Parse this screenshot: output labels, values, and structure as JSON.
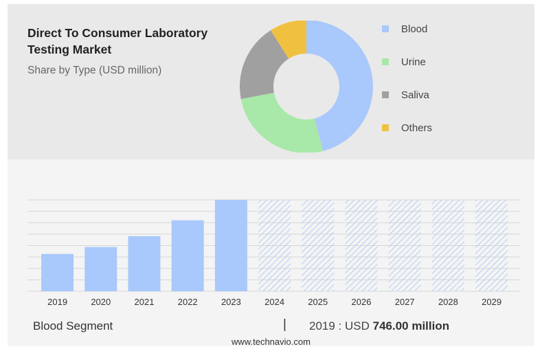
{
  "title": "Direct To Consumer Laboratory Testing Market",
  "subtitle": "Share by Type (USD million)",
  "legend": [
    {
      "label": "Blood",
      "color": "#a9c8fb"
    },
    {
      "label": "Urine",
      "color": "#a8e8a8"
    },
    {
      "label": "Saliva",
      "color": "#a0a0a0"
    },
    {
      "label": "Others",
      "color": "#f0c040"
    }
  ],
  "chart_data": [
    {
      "type": "pie",
      "subtype": "donut",
      "labels": [
        "Blood",
        "Urine",
        "Saliva",
        "Others"
      ],
      "values": [
        46,
        26,
        19,
        9
      ],
      "colors": [
        "#a9c8fb",
        "#a8e8a8",
        "#a0a0a0",
        "#f0c040"
      ]
    },
    {
      "type": "bar",
      "categories": [
        "2019",
        "2020",
        "2021",
        "2022",
        "2023",
        "2024",
        "2025",
        "2026",
        "2027",
        "2028",
        "2029"
      ],
      "values": [
        746,
        884,
        1100,
        1418,
        1826,
        null,
        null,
        null,
        null,
        null,
        null
      ],
      "forecast_categories": [
        "2024",
        "2025",
        "2026",
        "2027",
        "2028",
        "2029"
      ],
      "ylim": [
        0,
        1826
      ],
      "grid": true,
      "bar_color": "#a9c8fb",
      "forecast_color": "#b5cdf4"
    }
  ],
  "footer": {
    "segment_label": "Blood Segment",
    "separator": "|",
    "value_prefix": "2019 : USD",
    "value_bold": "746.00 million"
  },
  "source": "www.technavio.com"
}
